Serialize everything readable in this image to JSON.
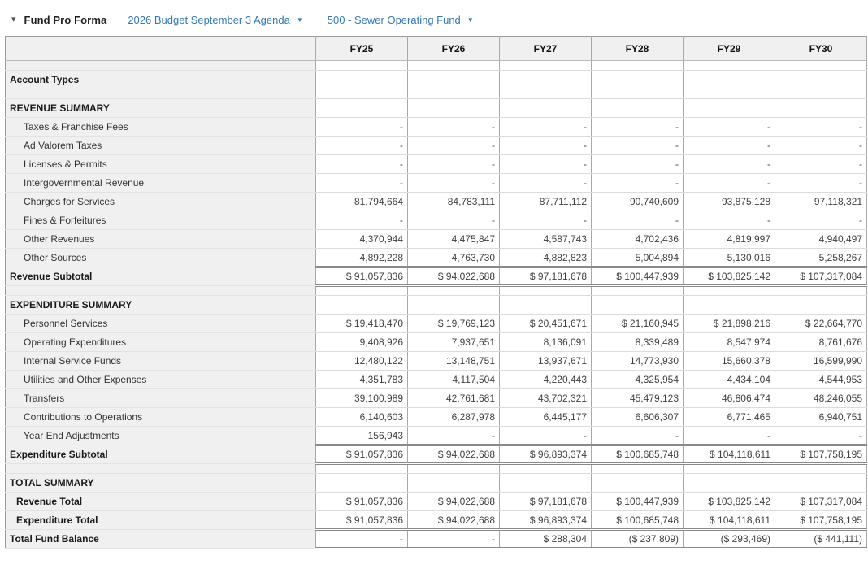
{
  "header": {
    "title": "Fund Pro Forma",
    "budget_dropdown": {
      "label": "2026 Budget September 3 Agenda"
    },
    "fund_dropdown": {
      "label": "500 - Sewer Operating Fund"
    }
  },
  "icons": {
    "collapse_caret": "▾",
    "dropdown_caret": "▼"
  },
  "colors": {
    "link_blue": "#3579b8",
    "header_bg": "#f0f0f0",
    "label_col_bg": "#f0f0f0"
  },
  "table": {
    "columns": [
      "FY25",
      "FY26",
      "FY27",
      "FY28",
      "FY29",
      "FY30"
    ],
    "rows": [
      {
        "type": "spacer",
        "label": "",
        "values": [
          "",
          "",
          "",
          "",
          "",
          ""
        ]
      },
      {
        "type": "section",
        "label": "Account Types",
        "values": [
          "",
          "",
          "",
          "",
          "",
          ""
        ]
      },
      {
        "type": "spacer",
        "label": "",
        "values": [
          "",
          "",
          "",
          "",
          "",
          ""
        ]
      },
      {
        "type": "section",
        "label": "REVENUE SUMMARY",
        "values": [
          "",
          "",
          "",
          "",
          "",
          ""
        ]
      },
      {
        "type": "item",
        "label": "Taxes & Franchise Fees",
        "values": [
          "-",
          "-",
          "-",
          "-",
          "-",
          "-"
        ]
      },
      {
        "type": "item",
        "label": "Ad Valorem Taxes",
        "values": [
          "-",
          "-",
          "-",
          "-",
          "-",
          "-"
        ]
      },
      {
        "type": "item",
        "label": "Licenses & Permits",
        "values": [
          "-",
          "-",
          "-",
          "-",
          "-",
          "-"
        ]
      },
      {
        "type": "item",
        "label": "Intergovernmental Revenue",
        "values": [
          "-",
          "-",
          "-",
          "-",
          "-",
          "-"
        ]
      },
      {
        "type": "item",
        "label": "Charges for Services",
        "values": [
          "81,794,664",
          "84,783,111",
          "87,711,112",
          "90,740,609",
          "93,875,128",
          "97,118,321"
        ]
      },
      {
        "type": "item",
        "label": "Fines & Forfeitures",
        "values": [
          "-",
          "-",
          "-",
          "-",
          "-",
          "-"
        ]
      },
      {
        "type": "item",
        "label": "Other Revenues",
        "values": [
          "4,370,944",
          "4,475,847",
          "4,587,743",
          "4,702,436",
          "4,819,997",
          "4,940,497"
        ]
      },
      {
        "type": "item",
        "label": "Other Sources",
        "values": [
          "4,892,228",
          "4,763,730",
          "4,882,823",
          "5,004,894",
          "5,130,016",
          "5,258,267"
        ]
      },
      {
        "type": "subtotal",
        "label": "Revenue Subtotal",
        "values": [
          "$ 91,057,836",
          "$ 94,022,688",
          "$ 97,181,678",
          "$ 100,447,939",
          "$ 103,825,142",
          "$ 107,317,084"
        ]
      },
      {
        "type": "spacer",
        "label": "",
        "values": [
          "",
          "",
          "",
          "",
          "",
          ""
        ]
      },
      {
        "type": "section",
        "label": "EXPENDITURE SUMMARY",
        "values": [
          "",
          "",
          "",
          "",
          "",
          ""
        ]
      },
      {
        "type": "item",
        "label": "Personnel Services",
        "values": [
          "$ 19,418,470",
          "$ 19,769,123",
          "$ 20,451,671",
          "$ 21,160,945",
          "$ 21,898,216",
          "$ 22,664,770"
        ]
      },
      {
        "type": "item",
        "label": "Operating Expenditures",
        "values": [
          "9,408,926",
          "7,937,651",
          "8,136,091",
          "8,339,489",
          "8,547,974",
          "8,761,676"
        ]
      },
      {
        "type": "item",
        "label": "Internal Service Funds",
        "values": [
          "12,480,122",
          "13,148,751",
          "13,937,671",
          "14,773,930",
          "15,660,378",
          "16,599,990"
        ]
      },
      {
        "type": "item",
        "label": "Utilities and Other Expenses",
        "values": [
          "4,351,783",
          "4,117,504",
          "4,220,443",
          "4,325,954",
          "4,434,104",
          "4,544,953"
        ]
      },
      {
        "type": "item",
        "label": "Transfers",
        "values": [
          "39,100,989",
          "42,761,681",
          "43,702,321",
          "45,479,123",
          "46,806,474",
          "48,246,055"
        ]
      },
      {
        "type": "item",
        "label": "Contributions to Operations",
        "values": [
          "6,140,603",
          "6,287,978",
          "6,445,177",
          "6,606,307",
          "6,771,465",
          "6,940,751"
        ]
      },
      {
        "type": "item",
        "label": "Year End Adjustments",
        "values": [
          "156,943",
          "-",
          "-",
          "-",
          "-",
          "-"
        ]
      },
      {
        "type": "subtotal",
        "label": "Expenditure Subtotal",
        "values": [
          "$ 91,057,836",
          "$ 94,022,688",
          "$ 96,893,374",
          "$ 100,685,748",
          "$ 104,118,611",
          "$ 107,758,195"
        ]
      },
      {
        "type": "spacer",
        "label": "",
        "values": [
          "",
          "",
          "",
          "",
          "",
          ""
        ]
      },
      {
        "type": "section",
        "label": "TOTAL SUMMARY",
        "values": [
          "",
          "",
          "",
          "",
          "",
          ""
        ]
      },
      {
        "type": "total",
        "label": "Revenue Total",
        "values": [
          "$ 91,057,836",
          "$ 94,022,688",
          "$ 97,181,678",
          "$ 100,447,939",
          "$ 103,825,142",
          "$ 107,317,084"
        ]
      },
      {
        "type": "total",
        "label": "Expenditure Total",
        "values": [
          "$ 91,057,836",
          "$ 94,022,688",
          "$ 96,893,374",
          "$ 100,685,748",
          "$ 104,118,611",
          "$ 107,758,195"
        ]
      },
      {
        "type": "grand",
        "label": "Total Fund Balance",
        "values": [
          "-",
          "-",
          "$ 288,304",
          "($ 237,809)",
          "($ 293,469)",
          "($ 441,111)"
        ]
      }
    ]
  }
}
